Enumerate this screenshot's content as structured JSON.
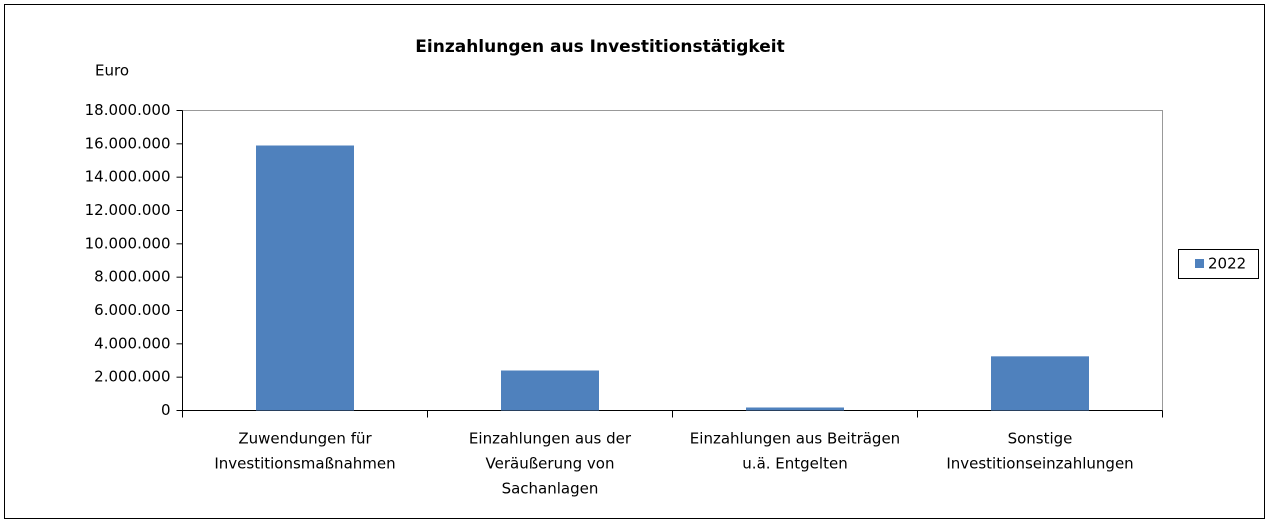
{
  "chart_data": {
    "type": "bar",
    "title": "Einzahlungen aus Investitionstätigkeit",
    "y_label": "Euro",
    "categories": [
      "Zuwendungen für\nInvestitionsmaßnahmen",
      "Einzahlungen aus der\nVeräußerung von\nSachanlagen",
      "Einzahlungen aus Beiträgen\nu.ä. Entgelten",
      "Sonstige\nInvestitionseinzahlungen"
    ],
    "series": [
      {
        "name": "2022",
        "color": "#4f81bd",
        "values": [
          15900000,
          2400000,
          180000,
          3250000
        ]
      }
    ],
    "ylim": [
      0,
      18000000
    ],
    "yticks": [
      {
        "value": 0,
        "label": "0"
      },
      {
        "value": 2000000,
        "label": "2.000.000"
      },
      {
        "value": 4000000,
        "label": "4.000.000"
      },
      {
        "value": 6000000,
        "label": "6.000.000"
      },
      {
        "value": 8000000,
        "label": "8.000.000"
      },
      {
        "value": 10000000,
        "label": "10.000.000"
      },
      {
        "value": 12000000,
        "label": "12.000.000"
      },
      {
        "value": 14000000,
        "label": "14.000.000"
      },
      {
        "value": 16000000,
        "label": "16.000.000"
      },
      {
        "value": 18000000,
        "label": "18.000.000"
      }
    ],
    "legend": "right"
  }
}
